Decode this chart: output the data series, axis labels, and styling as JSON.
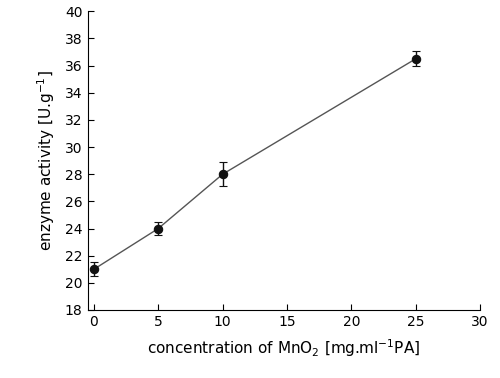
{
  "x": [
    0,
    5,
    10,
    25
  ],
  "y": [
    21.0,
    24.0,
    28.0,
    36.5
  ],
  "yerr": [
    0.5,
    0.5,
    0.9,
    0.55
  ],
  "xlim": [
    -0.5,
    30
  ],
  "ylim": [
    18,
    40
  ],
  "xticks": [
    0,
    5,
    10,
    15,
    20,
    25,
    30
  ],
  "yticks": [
    18,
    20,
    22,
    24,
    26,
    28,
    30,
    32,
    34,
    36,
    38,
    40
  ],
  "xlabel": "concentration of MnO$_2$ [mg.ml$^{-1}$PA]",
  "ylabel": "enzyme activity [U.g$^{-1}$]",
  "line_color": "#555555",
  "marker_color": "#111111",
  "marker_size": 6,
  "line_width": 1.0,
  "capsize": 3,
  "elinewidth": 1.0,
  "background_color": "#ffffff",
  "label_fontsize": 11,
  "tick_fontsize": 10
}
